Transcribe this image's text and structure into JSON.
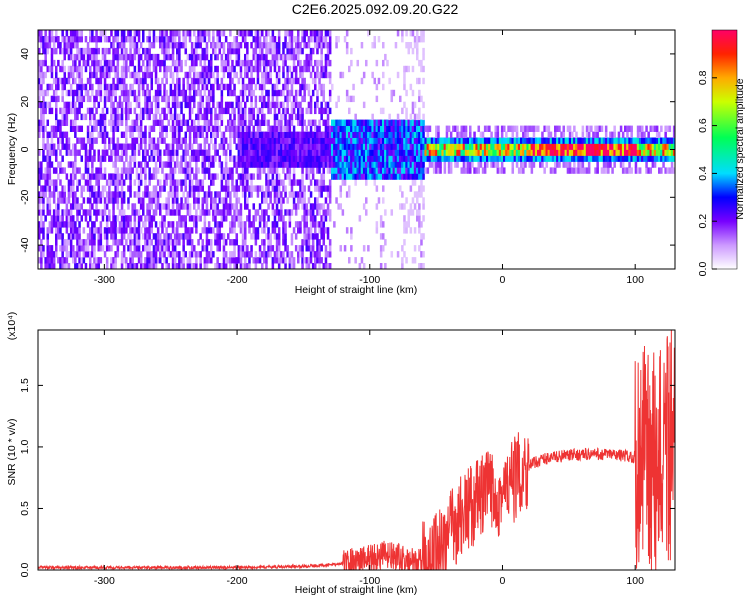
{
  "title": "C2E6.2025.092.09.20.G22",
  "chart_data": [
    {
      "type": "heatmap",
      "xlabel": "Height of straight line (km)",
      "ylabel": "Frequency (Hz)",
      "xlim": [
        -350,
        130
      ],
      "ylim": [
        -50,
        50
      ],
      "xticks": [
        "-300",
        "-200",
        "-100",
        "0",
        "100"
      ],
      "yticks": [
        "-40",
        "-20",
        "0",
        "20",
        "40"
      ],
      "colorbar": {
        "label": "Normalized spectral amplitude",
        "range": [
          0,
          1
        ],
        "ticks": [
          "0.0",
          "0.2",
          "0.4",
          "0.6",
          "0.8"
        ]
      },
      "features": {
        "noise_region_x": [
          -350,
          -130
        ],
        "transition_x": [
          -130,
          -60
        ],
        "signal_line_x": [
          -60,
          130
        ],
        "signal_frequency": 0
      }
    },
    {
      "type": "line",
      "xlabel": "Height of straight line (km)",
      "ylabel": "SNR (10 * v/v)",
      "scale_label": "(x10⁴)",
      "xlim": [
        -350,
        130
      ],
      "ylim": [
        0,
        1.95
      ],
      "xticks": [
        "-300",
        "-200",
        "-100",
        "0",
        "100"
      ],
      "yticks": [
        "0.0",
        "0.5",
        "1.0",
        "1.5"
      ],
      "series": [
        {
          "color": "#ee3333",
          "x": [
            -350,
            -300,
            -250,
            -200,
            -150,
            -120,
            -100,
            -90,
            -80,
            -70,
            -60,
            -50,
            -40,
            -30,
            -20,
            -10,
            0,
            10,
            20,
            30,
            40,
            50,
            60,
            70,
            80,
            90,
            100,
            105,
            110,
            115,
            120,
            125,
            130
          ],
          "y": [
            0.02,
            0.02,
            0.02,
            0.02,
            0.03,
            0.05,
            0.1,
            0.12,
            0.1,
            0.06,
            0.05,
            0.15,
            0.3,
            0.45,
            0.55,
            0.65,
            0.6,
            0.75,
            0.85,
            0.9,
            0.92,
            0.93,
            0.94,
            0.94,
            0.94,
            0.93,
            0.92,
            0.9,
            0.85,
            0.8,
            0.9,
            1.0,
            1.0
          ]
        }
      ]
    }
  ]
}
